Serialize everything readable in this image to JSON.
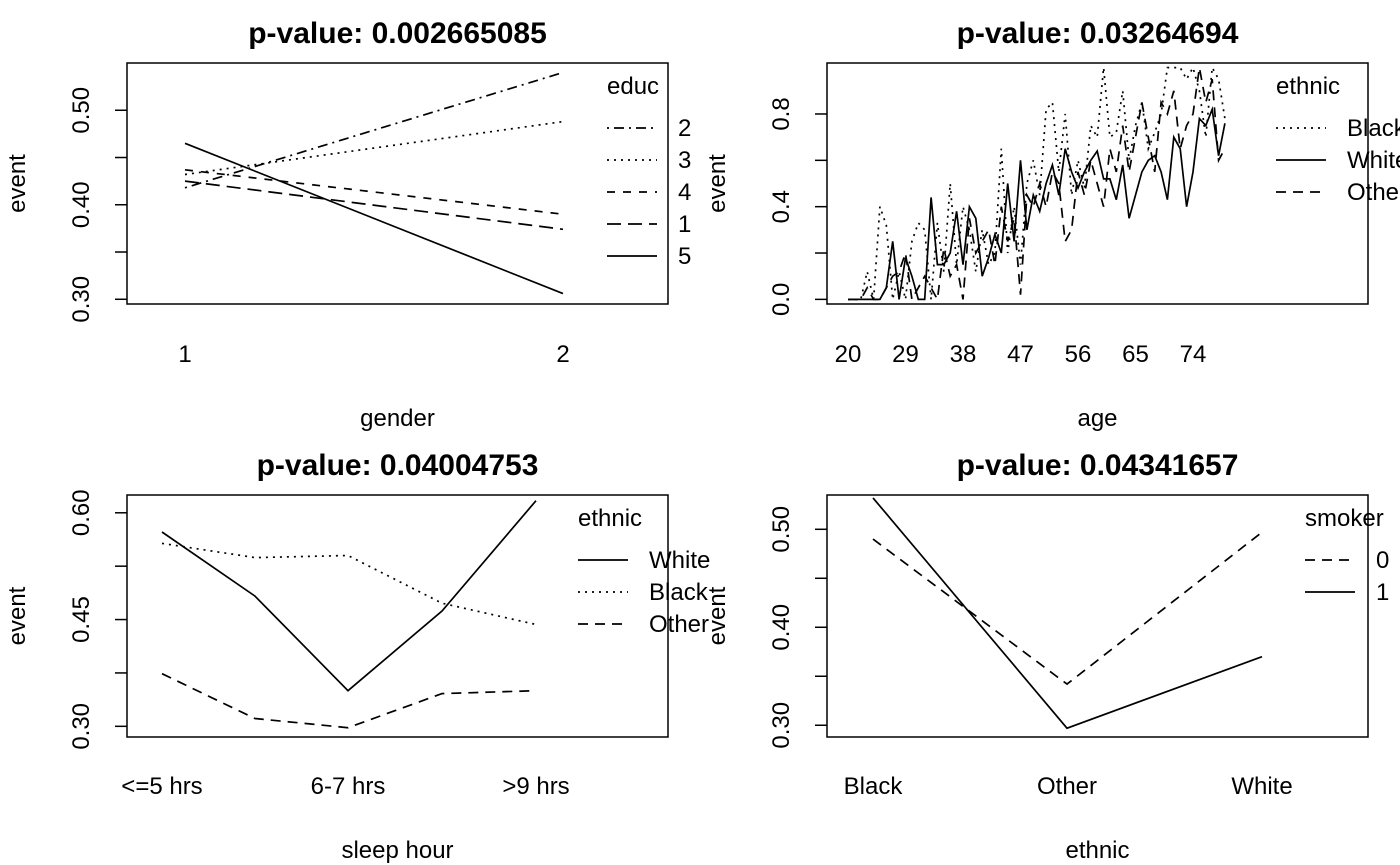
{
  "chart_data": [
    {
      "type": "line",
      "title": "p-value: 0.002665085",
      "xlabel": "gender",
      "ylabel": "event",
      "categories": [
        "1",
        "2"
      ],
      "ylim": [
        0.295,
        0.55
      ],
      "yticks": [
        "0.30",
        "0.40",
        "0.50"
      ],
      "legend_title": "educ",
      "legend_location": "top-right",
      "series": [
        {
          "name": "2",
          "dash": "dotdash",
          "values": [
            0.418,
            0.54
          ]
        },
        {
          "name": "3",
          "dash": "dotted",
          "values": [
            0.432,
            0.488
          ]
        },
        {
          "name": "4",
          "dash": "dashed-short",
          "values": [
            0.437,
            0.39
          ]
        },
        {
          "name": "1",
          "dash": "dashed-long",
          "values": [
            0.425,
            0.374
          ]
        },
        {
          "name": "5",
          "dash": "solid",
          "values": [
            0.465,
            0.306
          ]
        }
      ]
    },
    {
      "type": "line",
      "title": "p-value: 0.03264694",
      "xlabel": "age",
      "ylabel": "event",
      "xlim": [
        20,
        80
      ],
      "xticks": [
        "20",
        "29",
        "38",
        "47",
        "56",
        "65",
        "74"
      ],
      "ylim": [
        -0.02,
        1.02
      ],
      "yticks": [
        "0.0",
        "0.4",
        "0.8"
      ],
      "legend_title": "ethnic",
      "legend_location": "top-right",
      "series": [
        {
          "name": "Black",
          "dash": "dotted",
          "x": [
            20,
            21,
            22,
            23,
            24,
            25,
            26,
            27,
            28,
            29,
            30,
            31,
            32,
            33,
            34,
            35,
            36,
            37,
            38,
            39,
            40,
            41,
            42,
            43,
            44,
            45,
            46,
            47,
            48,
            49,
            50,
            51,
            52,
            53,
            54,
            55,
            56,
            57,
            58,
            59,
            60,
            61,
            62,
            63,
            64,
            65,
            66,
            67,
            68,
            69,
            70,
            71,
            72,
            73,
            74,
            75,
            76,
            77,
            78,
            79
          ],
          "values": [
            0,
            0,
            0,
            0.12,
            0,
            0.4,
            0.32,
            0,
            0.12,
            0,
            0.25,
            0.33,
            0.3,
            0,
            0.33,
            0.12,
            0.5,
            0.15,
            0.4,
            0.3,
            0.12,
            0.3,
            0.15,
            0.2,
            0.65,
            0.2,
            0.4,
            0.15,
            0.5,
            0.6,
            0.45,
            0.82,
            0.85,
            0.55,
            0.8,
            0.45,
            0.6,
            0.48,
            0.75,
            0.7,
            1.0,
            0.7,
            0.72,
            0.9,
            0.6,
            0.75,
            0.85,
            0.65,
            0.72,
            0.8,
            1.0,
            1.0,
            1.0,
            0.95,
            1.0,
            0.9,
            0.7,
            1.0,
            0.95,
            0.78
          ]
        },
        {
          "name": "White",
          "dash": "solid",
          "x": [
            20,
            21,
            22,
            23,
            24,
            25,
            26,
            27,
            28,
            29,
            30,
            31,
            32,
            33,
            34,
            35,
            36,
            37,
            38,
            39,
            40,
            41,
            42,
            43,
            44,
            45,
            46,
            47,
            48,
            49,
            50,
            51,
            52,
            53,
            54,
            55,
            56,
            57,
            58,
            59,
            60,
            61,
            62,
            63,
            64,
            65,
            66,
            67,
            68,
            69,
            70,
            71,
            72,
            73,
            74,
            75,
            76,
            77,
            78,
            79
          ],
          "values": [
            0,
            0,
            0,
            0,
            0,
            0,
            0.05,
            0.25,
            0,
            0.18,
            0.1,
            0,
            0,
            0.44,
            0.15,
            0.15,
            0.2,
            0.38,
            0.15,
            0.4,
            0.35,
            0.1,
            0.18,
            0.28,
            0.2,
            0.5,
            0.25,
            0.6,
            0.3,
            0.45,
            0.38,
            0.5,
            0.58,
            0.45,
            0.65,
            0.55,
            0.48,
            0.55,
            0.6,
            0.64,
            0.52,
            0.52,
            0.43,
            0.58,
            0.35,
            0.45,
            0.55,
            0.6,
            0.62,
            0.55,
            0.43,
            0.7,
            0.65,
            0.4,
            0.55,
            0.78,
            0.75,
            0.82,
            0.62,
            0.76
          ]
        },
        {
          "name": "Other",
          "dash": "dashed",
          "x": [
            20,
            21,
            22,
            23,
            24,
            25,
            26,
            27,
            28,
            29,
            30,
            31,
            32,
            33,
            34,
            35,
            36,
            37,
            38,
            39,
            40,
            41,
            42,
            43,
            44,
            45,
            46,
            47,
            48,
            49,
            50,
            51,
            52,
            53,
            54,
            55,
            56,
            57,
            58,
            59,
            60,
            61,
            62,
            63,
            64,
            65,
            66,
            67,
            68,
            69,
            70,
            71,
            72,
            73,
            74,
            75,
            76,
            77,
            78,
            79
          ],
          "values": [
            0,
            0,
            0,
            0.05,
            0,
            0,
            0.05,
            0.1,
            0.12,
            0.2,
            0.0,
            0.05,
            0.1,
            0.05,
            0,
            0.22,
            0.1,
            0.15,
            0,
            0.35,
            0.2,
            0.25,
            0.3,
            0.15,
            0.4,
            0.25,
            0.35,
            0.02,
            0.45,
            0.4,
            0.5,
            0.4,
            0.55,
            0.5,
            0.25,
            0.3,
            0.55,
            0.45,
            0.6,
            0.5,
            0.4,
            0.65,
            0.55,
            0.75,
            0.55,
            0.7,
            0.85,
            0.7,
            0.55,
            0.85,
            0.8,
            0.9,
            0.65,
            0.75,
            0.8,
            1.0,
            0.85,
            0.95,
            0.6,
            0.65
          ]
        }
      ]
    },
    {
      "type": "line",
      "title": "p-value: 0.04004753",
      "xlabel": "sleep hour",
      "ylabel": "event",
      "categories": [
        "<=5 hrs",
        "",
        "6-7 hrs",
        "",
        ">9 hrs"
      ],
      "tick_labels": [
        "<=5 hrs",
        "6-7 hrs",
        ">9 hrs"
      ],
      "ylim": [
        0.285,
        0.625
      ],
      "yticks": [
        "0.30",
        "0.45",
        "0.60"
      ],
      "legend_title": "ethnic",
      "legend_location": "top-right",
      "series": [
        {
          "name": "White",
          "dash": "solid",
          "values": [
            0.573,
            0.483,
            0.35,
            0.462,
            0.617
          ]
        },
        {
          "name": "Black",
          "dash": "dotted",
          "values": [
            0.557,
            0.537,
            0.54,
            0.473,
            0.443
          ]
        },
        {
          "name": "Other",
          "dash": "dashed",
          "values": [
            0.374,
            0.311,
            0.298,
            0.346,
            0.35
          ]
        }
      ]
    },
    {
      "type": "line",
      "title": "p-value: 0.04341657",
      "xlabel": "ethnic",
      "ylabel": "event",
      "categories": [
        "Black",
        "Other",
        "White"
      ],
      "ylim": [
        0.288,
        0.535
      ],
      "yticks": [
        "0.30",
        "0.40",
        "0.50"
      ],
      "legend_title": "smoker",
      "legend_location": "top-right",
      "series": [
        {
          "name": "0",
          "dash": "dashed",
          "values": [
            0.49,
            0.342,
            0.497
          ]
        },
        {
          "name": "1",
          "dash": "solid",
          "values": [
            0.532,
            0.297,
            0.37
          ]
        }
      ]
    }
  ]
}
